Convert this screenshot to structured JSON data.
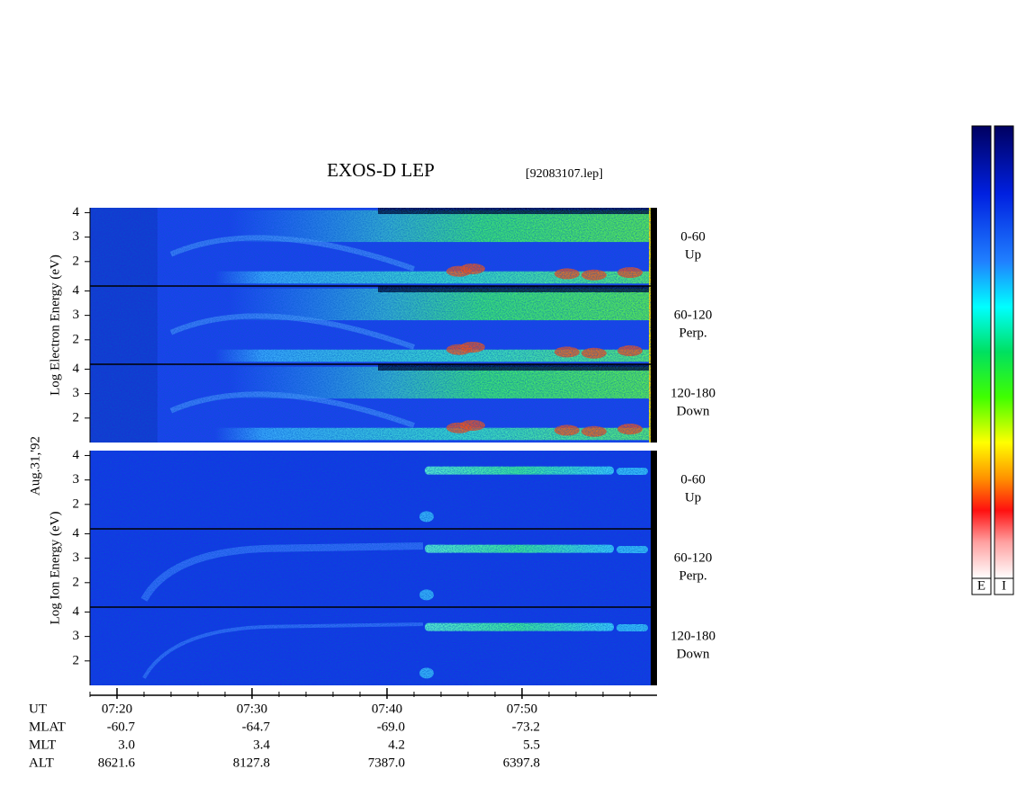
{
  "chart_data": {
    "type": "spectrogram",
    "title": "EXOS-D LEP",
    "file": "[92083107.lep]",
    "date": "Aug.31,'92",
    "groups": [
      {
        "label": "Log Electron Energy (eV)",
        "species": "electron",
        "panels": [
          {
            "range": "0-60",
            "dir": "Up"
          },
          {
            "range": "60-120",
            "dir": "Perp."
          },
          {
            "range": "120-180",
            "dir": "Down"
          }
        ]
      },
      {
        "label": "Log Ion Energy (eV)",
        "species": "ion",
        "panels": [
          {
            "range": "0-60",
            "dir": "Up"
          },
          {
            "range": "60-120",
            "dir": "Perp."
          },
          {
            "range": "120-180",
            "dir": "Down"
          }
        ]
      }
    ],
    "ylim": [
      1,
      4.2
    ],
    "yticks": [
      2,
      3,
      4
    ],
    "xlim": [
      18,
      60
    ],
    "xticks": [
      {
        "value": 20,
        "label": "07:20"
      },
      {
        "value": 30,
        "label": "07:30"
      },
      {
        "value": 40,
        "label": "07:40"
      },
      {
        "value": 50,
        "label": "07:50"
      }
    ],
    "xminor": [
      18,
      22,
      24,
      26,
      28,
      32,
      34,
      36,
      38,
      42,
      44,
      46,
      48,
      52,
      54,
      56,
      58
    ],
    "orbit": {
      "labels": [
        "UT",
        "MLAT",
        "MLT",
        "ALT"
      ],
      "rows": [
        [
          "-60.7",
          "-64.7",
          "-69.0",
          "-73.2"
        ],
        [
          "3.0",
          "3.4",
          "4.2",
          "5.5"
        ],
        [
          "8621.6",
          "8127.8",
          "7387.0",
          "6397.8"
        ]
      ]
    },
    "colorbars": [
      "E",
      "I"
    ]
  }
}
